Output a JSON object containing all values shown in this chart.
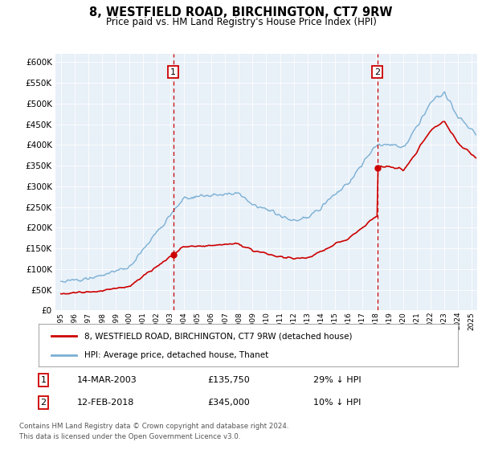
{
  "title": "8, WESTFIELD ROAD, BIRCHINGTON, CT7 9RW",
  "subtitle": "Price paid vs. HM Land Registry's House Price Index (HPI)",
  "sale1_price": 135750,
  "sale1_label": "14-MAR-2003",
  "sale1_hpi_diff": "29% ↓ HPI",
  "sale2_price": 345000,
  "sale2_label": "12-FEB-2018",
  "sale2_hpi_diff": "10% ↓ HPI",
  "legend_property": "8, WESTFIELD ROAD, BIRCHINGTON, CT7 9RW (detached house)",
  "legend_hpi": "HPI: Average price, detached house, Thanet",
  "footer1": "Contains HM Land Registry data © Crown copyright and database right 2024.",
  "footer2": "This data is licensed under the Open Government Licence v3.0.",
  "property_color": "#cc0000",
  "hpi_color": "#7aafd4",
  "background_color": "#e8f0f8",
  "ylim": [
    0,
    620000
  ],
  "yticks": [
    0,
    50000,
    100000,
    150000,
    200000,
    250000,
    300000,
    350000,
    400000,
    450000,
    500000,
    550000,
    600000
  ],
  "xlim_start": 1994.6,
  "xlim_end": 2025.4,
  "sale1_x": 2003.2,
  "sale2_x": 2018.1,
  "grid_color": "#ffffff",
  "box_edgecolor": "#cc0000"
}
